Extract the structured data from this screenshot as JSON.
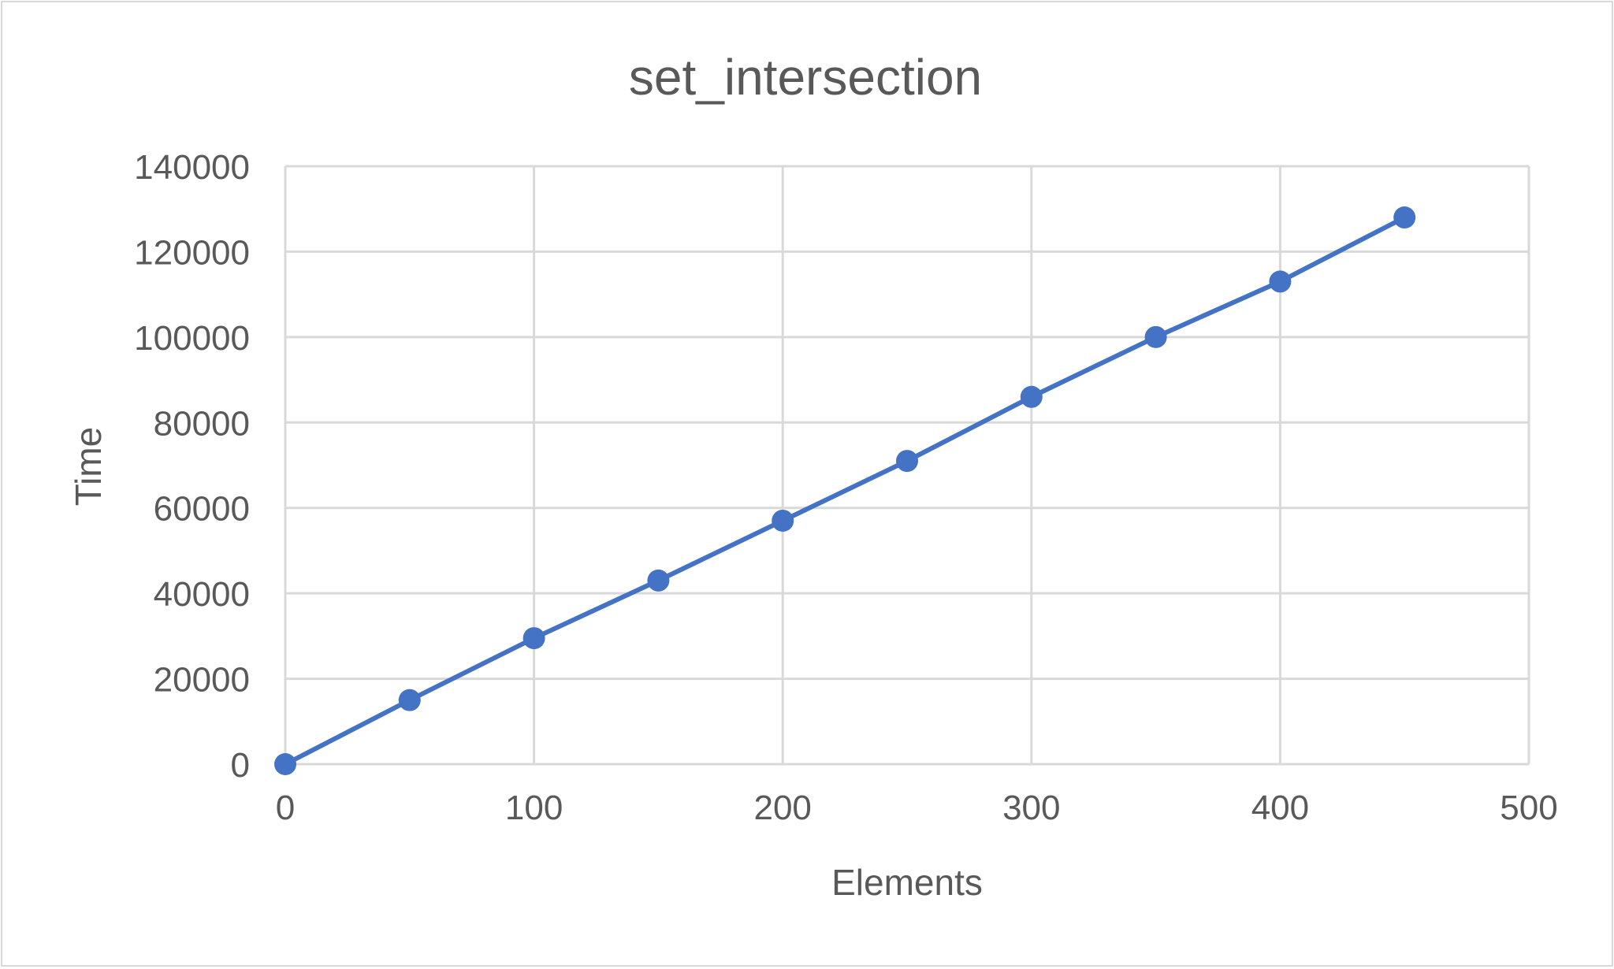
{
  "chart_data": {
    "type": "scatter",
    "title": "set_intersection",
    "xlabel": "Elements",
    "ylabel": "Time",
    "xlim": [
      0,
      500
    ],
    "ylim": [
      0,
      140000
    ],
    "xticks": [
      0,
      100,
      200,
      300,
      400,
      500
    ],
    "xtick_labels": [
      "0",
      "100",
      "200",
      "300",
      "400",
      "500"
    ],
    "yticks": [
      0,
      20000,
      40000,
      60000,
      80000,
      100000,
      120000,
      140000
    ],
    "ytick_labels": [
      "0",
      "20000",
      "40000",
      "60000",
      "80000",
      "100000",
      "120000",
      "140000"
    ],
    "grid": true,
    "legend": "none",
    "series": [
      {
        "x": [
          0,
          50,
          100,
          150,
          200,
          250,
          300,
          350,
          400,
          450
        ],
        "y": [
          0,
          15000,
          29500,
          43000,
          57000,
          71000,
          86000,
          100000,
          113000,
          128000
        ],
        "color": "#4472C4",
        "style": "line-with-markers"
      }
    ]
  },
  "colors": {
    "grid": "#D9D9D9",
    "text": "#595959",
    "series": "#4472C4"
  }
}
